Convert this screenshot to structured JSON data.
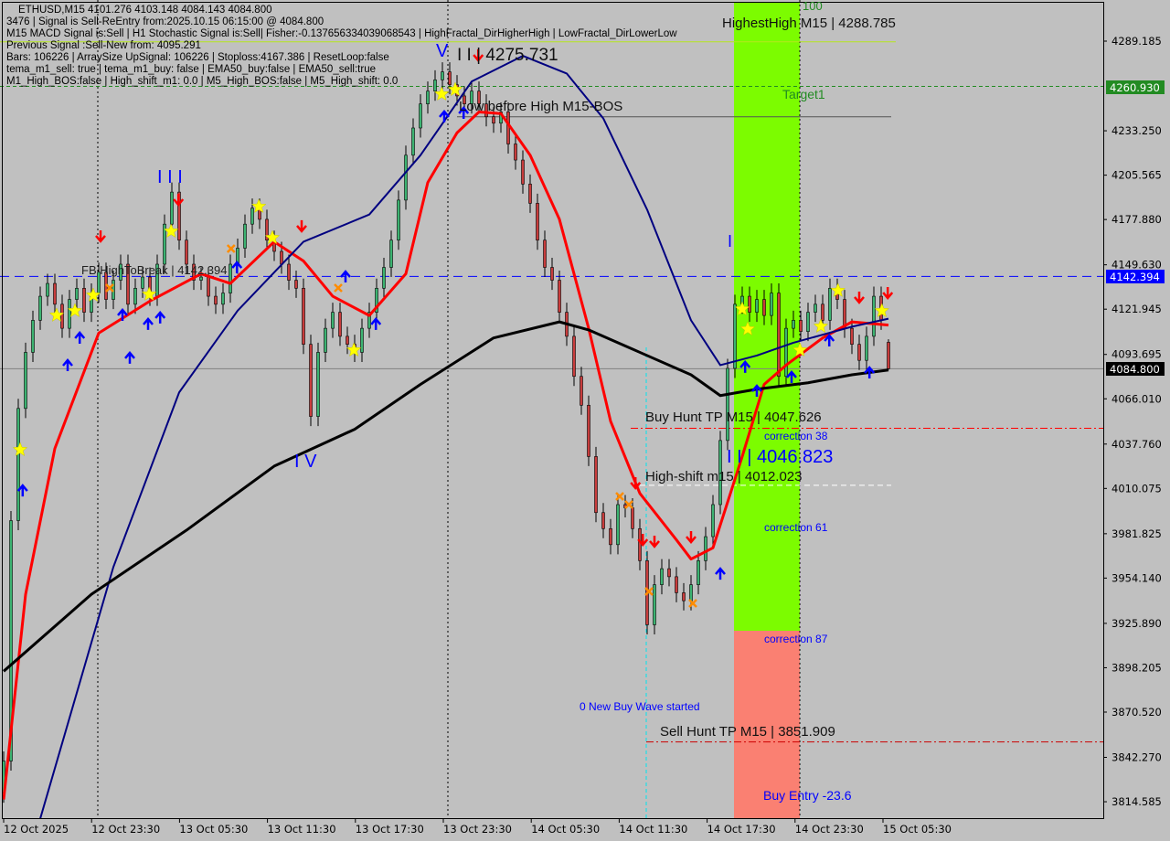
{
  "info_lines": [
    "ETHUSD,M15  4101.276 4103.148 4084.143 4084.800",
    "3476 | Signal is Sell-ReEntry from:2025.10.15 06:15:00 @ 4084.800",
    "M15 MACD Signal is:Sell | H1 Stochastic Signal is:Sell| Fisher:-0.137656334039068543 | HighFractal_DirHigherHigh | LowFractal_DirLowerLow",
    "Previous Signal :Sell-New from: 4095.291",
    "Bars: 106226 | ArraySize UpSignal: 106226 | Stoploss:4167.386 | ResetLoop:false",
    "tema_m1_sell: true | tema_m1_buy: false | EMA50_buy:false | EMA50_sell:true",
    "M1_High_BOS:false | High_shift_m1: 0.0 | M5_High_BOS:false | M5_High_shift: 0.0"
  ],
  "annotations": {
    "highest_high": "HighestHigh   M15 | 4288.785",
    "wave2_top": "I I | 4275.731",
    "low_before_high": "Low before High   M15-BOS",
    "target1": "Target1",
    "fib_100": "100",
    "fb_high_to_break": "FB HighToBreak | 4142.394",
    "wave_v": "V",
    "wave_iii": "I I I",
    "wave_iv": "I V",
    "wave_i": "I",
    "buy_hunt": "Buy Hunt TP M15 | 4047.626",
    "correction_38": "correction 38",
    "wave2_bottom": "I I | 4046.823",
    "high_shift": "High-shift m15 | 4012.023",
    "correction_61": "correction 61",
    "correction_87": "correction 87",
    "new_buy_wave": "0 New Buy Wave started",
    "sell_hunt": "Sell Hunt TP M15 | 3851.909",
    "buy_entry": "Buy Entry -23.6"
  },
  "price_tags": {
    "target": "4260.930",
    "break": "4142.394",
    "current": "4084.800"
  },
  "colors": {
    "background": "#c0c0c0",
    "bull": "#3cb371",
    "bear": "#c83c3c",
    "ema_fast": "#ff0000",
    "ema_mid": "#000080",
    "ema_slow": "#000000",
    "buy_zone": "#7cfc00",
    "sell_zone": "#fa8072",
    "target_tag": "#228b22",
    "break_tag": "#0000ff",
    "current_tag": "#000000"
  },
  "chart_data": {
    "type": "candlestick",
    "symbol": "ETHUSD",
    "timeframe": "M15",
    "ylim": [
      3800,
      4300
    ],
    "y_ticks": [
      "4289.185",
      "4233.250",
      "4205.565",
      "4177.880",
      "4149.630",
      "4121.945",
      "4093.695",
      "4066.010",
      "4037.760",
      "4010.075",
      "3981.825",
      "3954.140",
      "3925.890",
      "3898.205",
      "3870.520",
      "3842.270",
      "3814.585"
    ],
    "x_ticks": [
      "12 Oct 2025",
      "12 Oct 23:30",
      "13 Oct 05:30",
      "13 Oct 11:30",
      "13 Oct 17:30",
      "13 Oct 23:30",
      "14 Oct 05:30",
      "14 Oct 11:30",
      "14 Oct 17:30",
      "14 Oct 23:30",
      "15 Oct 05:30"
    ],
    "closes": [
      3840,
      3990,
      4060,
      4095,
      4115,
      4130,
      4138,
      4125,
      4110,
      4128,
      4135,
      4120,
      4132,
      4145,
      4128,
      4140,
      4150,
      4125,
      4135,
      4142,
      4130,
      4150,
      4175,
      4195,
      4165,
      4150,
      4140,
      4142,
      4130,
      4125,
      4132,
      4150,
      4160,
      4175,
      4185,
      4178,
      4165,
      4158,
      4150,
      4140,
      4135,
      4100,
      4055,
      4095,
      4110,
      4120,
      4105,
      4100,
      4095,
      4110,
      4120,
      4135,
      4148,
      4165,
      4190,
      4218,
      4235,
      4250,
      4258,
      4265,
      4270,
      4262,
      4255,
      4250,
      4258,
      4250,
      4242,
      4238,
      4245,
      4225,
      4215,
      4200,
      4188,
      4165,
      4148,
      4140,
      4120,
      4105,
      4080,
      4062,
      4030,
      3995,
      3985,
      3975,
      4000,
      3998,
      3985,
      3965,
      3925,
      3950,
      3960,
      3955,
      3945,
      3940,
      3950,
      3965,
      3980,
      4000,
      4040,
      4085,
      4125,
      4130,
      4120,
      4128,
      4118,
      4132,
      4080,
      4110,
      4115,
      4108,
      4120,
      4125,
      4115,
      4135,
      4128,
      4110,
      4100,
      4090,
      4105,
      4130,
      4115,
      4084.8
    ],
    "last_candle": {
      "open": 4101.276,
      "high": 4103.148,
      "low": 4084.143,
      "close": 4084.8
    },
    "series": [
      {
        "key": "ema_fast",
        "points": [
          [
            0,
            3816
          ],
          [
            3,
            3944
          ],
          [
            7,
            4035
          ],
          [
            13,
            4107
          ],
          [
            20,
            4127
          ],
          [
            27,
            4144
          ],
          [
            31,
            4138
          ],
          [
            37,
            4164
          ],
          [
            41,
            4152
          ],
          [
            45,
            4130
          ],
          [
            50,
            4118
          ],
          [
            55,
            4144
          ],
          [
            58,
            4201
          ],
          [
            62,
            4232
          ],
          [
            65,
            4245
          ],
          [
            68,
            4244
          ],
          [
            72,
            4218
          ],
          [
            76,
            4178
          ],
          [
            80,
            4110
          ],
          [
            83,
            4052
          ],
          [
            87,
            4007
          ],
          [
            92,
            3978
          ],
          [
            94,
            3966
          ],
          [
            97,
            3973
          ],
          [
            101,
            4030
          ],
          [
            104,
            4075
          ],
          [
            107,
            4087
          ],
          [
            112,
            4104
          ],
          [
            116,
            4114
          ],
          [
            121,
            4112
          ]
        ]
      },
      {
        "key": "ema_mid",
        "points": [
          [
            5,
            3804
          ],
          [
            15,
            3961
          ],
          [
            24,
            4070
          ],
          [
            32,
            4121
          ],
          [
            41,
            4164
          ],
          [
            50,
            4181
          ],
          [
            57,
            4218
          ],
          [
            64,
            4264
          ],
          [
            71,
            4280
          ],
          [
            77,
            4269
          ],
          [
            82,
            4241
          ],
          [
            88,
            4184
          ],
          [
            94,
            4115
          ],
          [
            98,
            4087
          ],
          [
            103,
            4093
          ],
          [
            108,
            4101
          ],
          [
            116,
            4111
          ],
          [
            121,
            4116
          ]
        ]
      },
      {
        "key": "ema_slow",
        "points": [
          [
            0,
            3896
          ],
          [
            12,
            3944
          ],
          [
            25,
            3984
          ],
          [
            37,
            4024
          ],
          [
            48,
            4047
          ],
          [
            57,
            4075
          ],
          [
            67,
            4104
          ],
          [
            76,
            4114
          ],
          [
            80,
            4109
          ],
          [
            87,
            4095
          ],
          [
            94,
            4081
          ],
          [
            98,
            4068
          ],
          [
            103,
            4072
          ],
          [
            110,
            4076
          ],
          [
            116,
            4081
          ],
          [
            121,
            4084
          ]
        ]
      }
    ],
    "levels": [
      {
        "key": "highest_high",
        "price": 4288.785
      },
      {
        "key": "target1",
        "price": 4260.93
      },
      {
        "key": "low_before_high",
        "price": 4242.0
      },
      {
        "key": "fb_high_to_break",
        "price": 4142.394
      },
      {
        "key": "current",
        "price": 4084.8
      },
      {
        "key": "buy_hunt",
        "price": 4047.626
      },
      {
        "key": "high_shift",
        "price": 4012.023
      },
      {
        "key": "sell_hunt",
        "price": 3851.909
      }
    ],
    "markers": {
      "star": [
        [
          2.25,
          4034.2
        ],
        [
          7.25,
          4118.1
        ],
        [
          9.75,
          4120.9
        ],
        [
          12.25,
          4130.6
        ],
        [
          19.9,
          4131.2
        ],
        [
          22.9,
          4170.5
        ],
        [
          34.9,
          4186.0
        ],
        [
          36.75,
          4166.5
        ],
        [
          47.9,
          4096.4
        ],
        [
          59.9,
          4256.1
        ],
        [
          61.75,
          4258.9
        ],
        [
          101,
          4122.0
        ],
        [
          101.75,
          4109.5
        ],
        [
          108.9,
          4096.4
        ],
        [
          111.75,
          4111.2
        ],
        [
          114.1,
          4133.5
        ],
        [
          120.1,
          4120.9
        ]
      ],
      "buy_arrow": [
        [
          2.6,
          4008.5
        ],
        [
          8.75,
          4086.7
        ],
        [
          10.4,
          4103.8
        ],
        [
          16.25,
          4118.1
        ],
        [
          17.25,
          4091.3
        ],
        [
          19.75,
          4112.4
        ],
        [
          21.4,
          4116.4
        ],
        [
          31.9,
          4147.7
        ],
        [
          46.75,
          4142.0
        ],
        [
          50.9,
          4112.4
        ],
        [
          60.25,
          4241.9
        ],
        [
          62.9,
          4244.1
        ],
        [
          98,
          3956.6
        ],
        [
          101.4,
          4085.6
        ],
        [
          103,
          4070.7
        ],
        [
          107.75,
          4079.3
        ],
        [
          112.9,
          4102.1
        ],
        [
          118.4,
          4082.1
        ]
      ],
      "sell_arrow": [
        [
          13.25,
          4167.7
        ],
        [
          23.9,
          4190.5
        ],
        [
          40.75,
          4174.0
        ],
        [
          64.9,
          4280.6
        ],
        [
          86.4,
          4013.7
        ],
        [
          87.4,
          3978.3
        ],
        [
          89,
          3977.2
        ],
        [
          94,
          3980.0
        ],
        [
          117,
          4129.5
        ],
        [
          120.9,
          4132.3
        ]
      ],
      "cross": [
        [
          14.5,
          4135.2
        ],
        [
          31.1,
          4159.7
        ],
        [
          45.75,
          4135.2
        ],
        [
          84.25,
          4005.1
        ],
        [
          85.5,
          4000.0
        ],
        [
          88.25,
          3945.8
        ],
        [
          94.25,
          3938.4
        ]
      ]
    }
  }
}
